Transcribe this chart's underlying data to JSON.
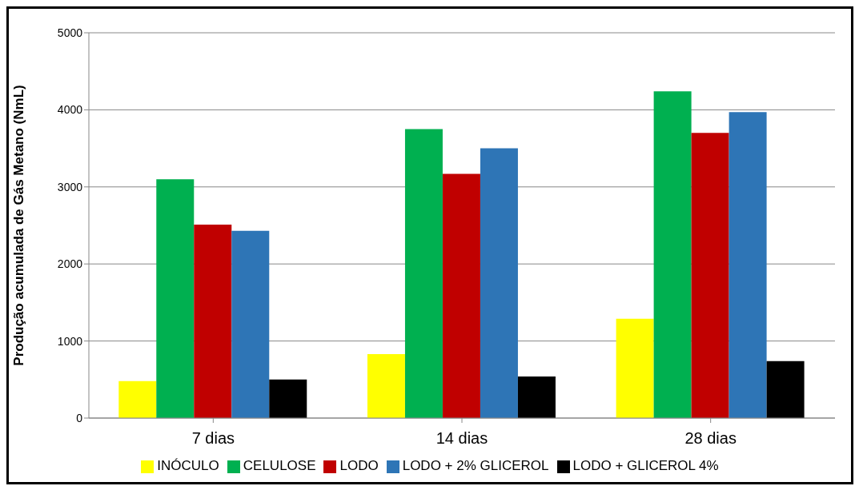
{
  "chart_data": {
    "type": "bar",
    "ylabel": "Produção acumulada de Gás Metano (NmL)",
    "categories": [
      "7 dias",
      "14 dias",
      "28 dias"
    ],
    "series": [
      {
        "name": "INÓCULO",
        "color": "#ffff00",
        "values": [
          480,
          830,
          1290
        ]
      },
      {
        "name": "CELULOSE",
        "color": "#00b050",
        "values": [
          3100,
          3750,
          4240
        ]
      },
      {
        "name": "LODO",
        "color": "#c00000",
        "values": [
          2510,
          3170,
          3700
        ]
      },
      {
        "name": "LODO + 2% GLICEROL",
        "color": "#2e75b6",
        "values": [
          2430,
          3500,
          3970
        ]
      },
      {
        "name": "LODO + GLICEROL 4%",
        "color": "#000000",
        "values": [
          500,
          540,
          740
        ]
      }
    ],
    "ylim": [
      0,
      5000
    ],
    "yticks": [
      0,
      1000,
      2000,
      3000,
      4000,
      5000
    ],
    "grid": "y",
    "legend": "bottom"
  }
}
